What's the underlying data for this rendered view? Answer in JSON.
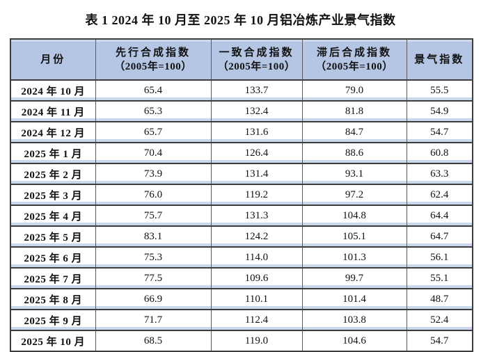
{
  "title": "表 1 2024 年 10 月至 2025 年 10 月铝冶炼产业景气指数",
  "colors": {
    "header_bg": "#b4c6e3",
    "row_stripe": "#cbd8ec",
    "border_dark": "#3d3d3d",
    "border_gray": "#5a5a5a",
    "text": "#111111"
  },
  "header": {
    "col1": "月份",
    "col2_line1": "先行合成指数",
    "col2_line2": "（2005年=100）",
    "col3_line1": "一致合成指数",
    "col3_line2": "（2005年=100）",
    "col4_line1": "滞后合成指数",
    "col4_line2": "（2005年=100）",
    "col5": "景气指数"
  },
  "chart_data": {
    "type": "table",
    "title": "表 1 2024 年 10 月至 2025 年 10 月铝冶炼产业景气指数",
    "columns": [
      "月份",
      "先行合成指数（2005年=100）",
      "一致合成指数（2005年=100）",
      "滞后合成指数（2005年=100）",
      "景气指数"
    ],
    "rows": [
      [
        "2024 年 10 月",
        "65.4",
        "133.7",
        "79.0",
        "55.5"
      ],
      [
        "2024 年 11 月",
        "65.3",
        "132.4",
        "81.8",
        "54.9"
      ],
      [
        "2024 年 12 月",
        "65.7",
        "131.6",
        "84.7",
        "54.7"
      ],
      [
        "2025 年 1 月",
        "70.4",
        "126.4",
        "88.6",
        "60.8"
      ],
      [
        "2025 年 2 月",
        "73.9",
        "131.4",
        "93.1",
        "63.3"
      ],
      [
        "2025 年 3 月",
        "76.0",
        "119.2",
        "97.2",
        "62.4"
      ],
      [
        "2025 年 4 月",
        "75.7",
        "131.3",
        "104.8",
        "64.4"
      ],
      [
        "2025 年 5 月",
        "83.1",
        "124.2",
        "105.1",
        "64.7"
      ],
      [
        "2025 年 6 月",
        "75.3",
        "114.0",
        "101.3",
        "56.1"
      ],
      [
        "2025 年 7 月",
        "77.5",
        "109.6",
        "99.7",
        "55.1"
      ],
      [
        "2025 年 8 月",
        "66.9",
        "110.1",
        "101.4",
        "48.7"
      ],
      [
        "2025 年 9 月",
        "71.7",
        "112.4",
        "103.8",
        "52.4"
      ],
      [
        "2025 年 10 月",
        "68.5",
        "119.0",
        "104.6",
        "54.7"
      ]
    ]
  }
}
